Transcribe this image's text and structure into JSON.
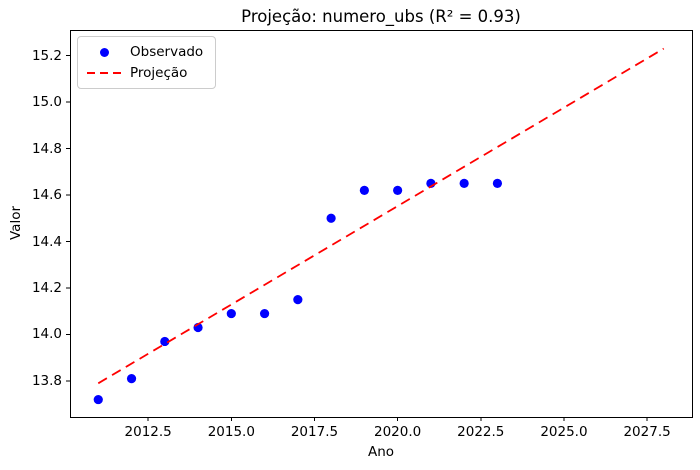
{
  "figure": {
    "title": "Projeção: numero_ubs (R² = 0.93)",
    "xlabel": "Ano",
    "ylabel": "Valor",
    "background_color": "#ffffff",
    "axis_color": "#000000"
  },
  "legend": {
    "position": "upper-left",
    "items": [
      {
        "label": "Observado",
        "marker": "dot-marker",
        "color": "#0000ff"
      },
      {
        "label": "Projeção",
        "marker": "dashed-line-marker",
        "color": "#ff0000"
      }
    ]
  },
  "chart_data": {
    "type": "scatter",
    "title": "Projeção: numero_ubs (R² = 0.93)",
    "xlabel": "Ano",
    "ylabel": "Valor",
    "r_squared": 0.93,
    "xlim": [
      2010.15,
      2028.85
    ],
    "ylim": [
      13.645,
      15.31
    ],
    "xticks": [
      2012.5,
      2015.0,
      2017.5,
      2020.0,
      2022.5,
      2025.0,
      2027.5
    ],
    "yticks": [
      13.8,
      14.0,
      14.2,
      14.4,
      14.6,
      14.8,
      15.0,
      15.2
    ],
    "grid": false,
    "legend_position": "upper-left",
    "series": [
      {
        "name": "Observado",
        "kind": "scatter",
        "color": "#0000ff",
        "x": [
          2011,
          2012,
          2013,
          2014,
          2015,
          2016,
          2017,
          2018,
          2019,
          2020,
          2021,
          2022,
          2023
        ],
        "y": [
          13.72,
          13.81,
          13.97,
          14.03,
          14.09,
          14.09,
          14.15,
          14.5,
          14.62,
          14.62,
          14.65,
          14.65,
          14.65
        ]
      },
      {
        "name": "Projeção",
        "kind": "line",
        "style": "dashed",
        "color": "#ff0000",
        "x": [
          2011,
          2028
        ],
        "y": [
          13.79,
          15.23
        ]
      }
    ]
  }
}
